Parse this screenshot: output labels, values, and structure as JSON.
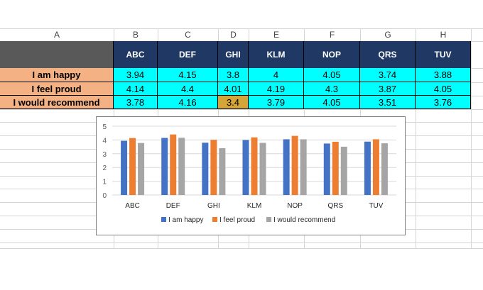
{
  "sheet": {
    "columns": [
      "A",
      "B",
      "C",
      "D",
      "E",
      "F",
      "G",
      "H"
    ],
    "table": {
      "headers": [
        "ABC",
        "DEF",
        "GHI",
        "KLM",
        "NOP",
        "QRS",
        "TUV"
      ],
      "rows": [
        {
          "label": "I am happy",
          "values": [
            "3.94",
            "4.15",
            "3.8",
            "4",
            "4.05",
            "3.74",
            "3.88"
          ]
        },
        {
          "label": "I feel proud",
          "values": [
            "4.14",
            "4.4",
            "4.01",
            "4.19",
            "4.3",
            "3.87",
            "4.05"
          ]
        },
        {
          "label": "I would recommend",
          "values": [
            "3.78",
            "4.16",
            "3.4",
            "3.79",
            "4.05",
            "3.51",
            "3.76"
          ]
        }
      ],
      "highlight": {
        "row": 2,
        "col": 2,
        "color": "#d4a537"
      }
    }
  },
  "colors": {
    "header_bg": "#1f3864",
    "label_bg": "#f4b183",
    "value_bg": "#00ffff",
    "grid": "#d4d4d4"
  },
  "chart_data": {
    "type": "bar",
    "categories": [
      "ABC",
      "DEF",
      "GHI",
      "KLM",
      "NOP",
      "QRS",
      "TUV"
    ],
    "series": [
      {
        "name": "I am happy",
        "color": "#4472c4",
        "values": [
          3.94,
          4.15,
          3.8,
          4,
          4.05,
          3.74,
          3.88
        ]
      },
      {
        "name": "I feel proud",
        "color": "#ed7d31",
        "values": [
          4.14,
          4.4,
          4.01,
          4.19,
          4.3,
          3.87,
          4.05
        ]
      },
      {
        "name": "I would recommend",
        "color": "#a5a5a5",
        "values": [
          3.78,
          4.16,
          3.4,
          3.79,
          4.05,
          3.51,
          3.76
        ]
      }
    ],
    "ylim": [
      0,
      5
    ],
    "yticks": [
      "0",
      "1",
      "2",
      "3",
      "4",
      "5"
    ],
    "grid": true,
    "legend": "bottom"
  }
}
